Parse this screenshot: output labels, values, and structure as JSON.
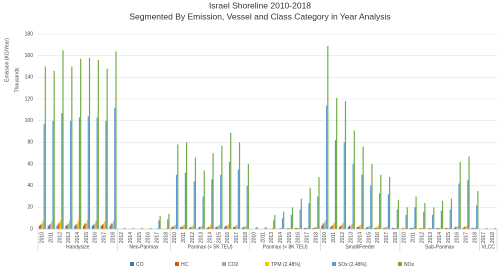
{
  "chart_data": {
    "type": "bar",
    "title": "Israel Shoreline 2010-2018",
    "subtitle": "Segmented By Emission, Vessel and Class Category in Year Analysis",
    "y_label": "Emission (KG/Year)",
    "y_unit_label": "Thousands",
    "groups": [
      {
        "name": "Handysize",
        "years": [
          "2010",
          "2011",
          "2012",
          "2013",
          "2014",
          "2015",
          "2016",
          "2017",
          "2018"
        ]
      },
      {
        "name": "Neo-Panmax",
        "years": [
          "2012",
          "2014",
          "2015",
          "2016",
          "2017",
          "2018"
        ]
      },
      {
        "name": "Panmax (< 5K TEU)",
        "years": [
          "2010",
          "2011",
          "2012",
          "2013",
          "2014",
          "2015",
          "2016",
          "2017",
          "2018"
        ]
      },
      {
        "name": "Panmax (< 8K TEU)",
        "years": [
          "2010",
          "2011",
          "2013",
          "2014",
          "2015",
          "2016",
          "2017",
          "2018"
        ]
      },
      {
        "name": "Small/Feeder",
        "years": [
          "2010",
          "2011",
          "2012",
          "2013",
          "2014",
          "2015",
          "2016",
          "2017",
          "2018"
        ]
      },
      {
        "name": "Sub-Panmax",
        "years": [
          "2010",
          "2011",
          "2012",
          "2013",
          "2014",
          "2015",
          "2016",
          "2017",
          "2018"
        ]
      },
      {
        "name": "VLCC",
        "years": [
          "2017",
          "2018"
        ]
      }
    ],
    "series": [
      {
        "name": "CO",
        "color": "#4472c4",
        "values": [
          3,
          3,
          3,
          3,
          3,
          3,
          3,
          3,
          3,
          0,
          0,
          0,
          0,
          0,
          0,
          2,
          2,
          1,
          1,
          1,
          2,
          2,
          2,
          1,
          0,
          0,
          0,
          0,
          0,
          1,
          1,
          1,
          3,
          2,
          2,
          2,
          2,
          1,
          1,
          1,
          1,
          0,
          1,
          0,
          0,
          1,
          1,
          1,
          1,
          1,
          0,
          0
        ]
      },
      {
        "name": "HC",
        "color": "#c55a11",
        "values": [
          4,
          4,
          5,
          4,
          4,
          5,
          4,
          4,
          5,
          0,
          0,
          0,
          0,
          0,
          0,
          2,
          2,
          2,
          2,
          2,
          2,
          3,
          2,
          2,
          0,
          0,
          0,
          0,
          1,
          1,
          1,
          1,
          5,
          3,
          3,
          3,
          2,
          2,
          1,
          1,
          1,
          1,
          1,
          1,
          1,
          1,
          1,
          2,
          2,
          1,
          0,
          0
        ]
      },
      {
        "name": "CO2",
        "color": "#a5a5a5",
        "values": [
          5,
          5,
          6,
          5,
          5,
          5,
          5,
          5,
          5,
          0,
          0,
          0,
          0,
          0,
          0,
          3,
          3,
          2,
          2,
          2,
          3,
          3,
          3,
          2,
          0,
          0,
          0,
          1,
          1,
          1,
          1,
          2,
          6,
          4,
          4,
          3,
          3,
          2,
          2,
          2,
          1,
          1,
          1,
          1,
          1,
          1,
          1,
          2,
          2,
          1,
          0,
          0
        ]
      },
      {
        "name": "TPM (2.48%)",
        "color": "#ffc000",
        "values": [
          8,
          7,
          8,
          8,
          8,
          8,
          8,
          7,
          8,
          0,
          0,
          0,
          0,
          1,
          1,
          4,
          4,
          3,
          3,
          4,
          4,
          4,
          4,
          3,
          0,
          0,
          1,
          1,
          1,
          1,
          2,
          2,
          8,
          6,
          6,
          5,
          4,
          3,
          3,
          2,
          1,
          1,
          2,
          1,
          1,
          1,
          1,
          3,
          3,
          2,
          0,
          0
        ]
      },
      {
        "name": "SOx (2.48%)",
        "color": "#5b9bd5",
        "values": [
          97,
          100,
          107,
          100,
          103,
          104,
          103,
          100,
          112,
          0.5,
          0.5,
          0.5,
          0.5,
          8,
          9,
          50,
          52,
          44,
          30,
          46,
          50,
          62,
          55,
          40,
          1,
          1,
          8,
          10,
          13,
          18,
          24,
          30,
          114,
          82,
          80,
          60,
          50,
          40,
          33,
          32,
          18,
          13,
          20,
          16,
          13,
          17,
          18,
          42,
          45,
          22,
          0.5,
          0.5
        ]
      },
      {
        "name": "NOx",
        "color": "#70ad47",
        "values": [
          150,
          146,
          165,
          150,
          157,
          158,
          156,
          148,
          164,
          1,
          1,
          1,
          1,
          12,
          14,
          78,
          80,
          66,
          54,
          70,
          77,
          89,
          80,
          60,
          2,
          2,
          13,
          16,
          20,
          28,
          38,
          48,
          169,
          121,
          118,
          91,
          76,
          60,
          50,
          48,
          27,
          20,
          30,
          24,
          20,
          26,
          28,
          62,
          67,
          35,
          1,
          1
        ]
      }
    ],
    "ylim": [
      0,
      180
    ],
    "yticks": [
      0,
      20,
      40,
      60,
      80,
      100,
      120,
      140,
      160,
      180
    ],
    "grid": true
  }
}
